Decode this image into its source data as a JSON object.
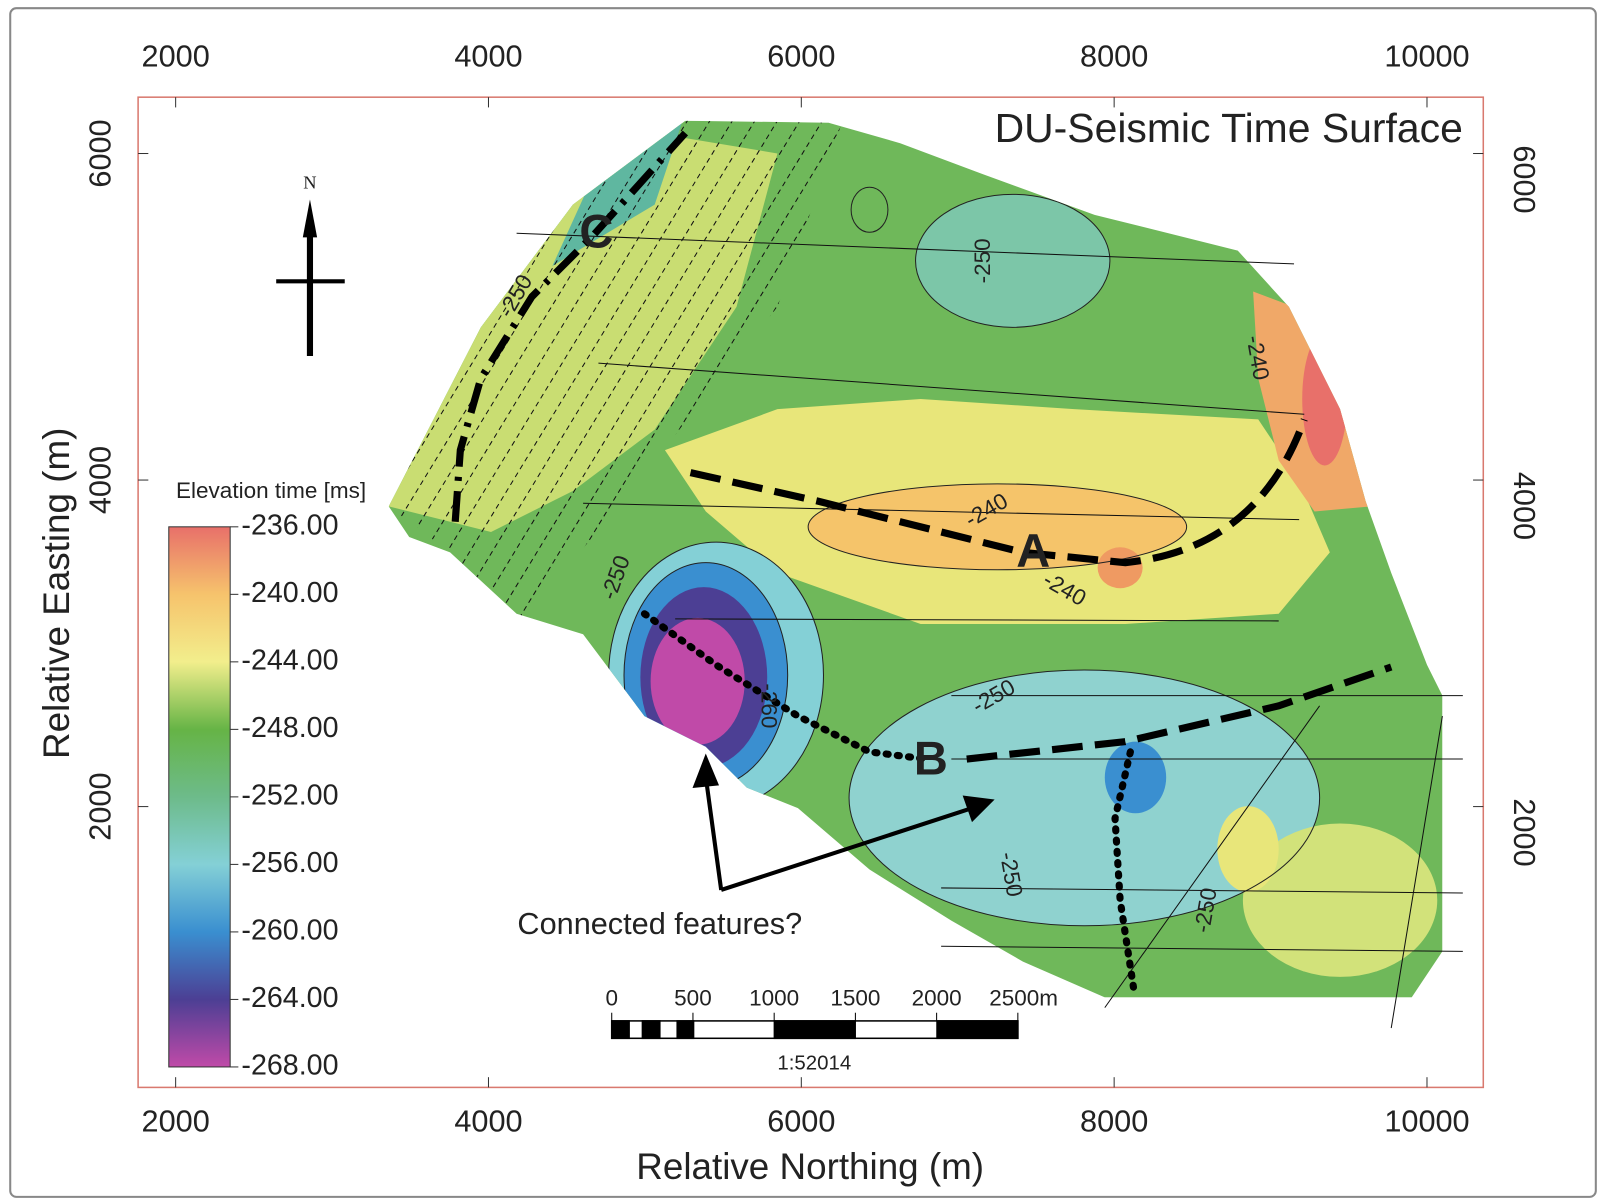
{
  "map": {
    "title": "DU-Seismic Time Surface",
    "x_axis": {
      "label": "Relative Northing (m)",
      "lim": [
        1760,
        10360
      ],
      "ticks": [
        2000,
        4000,
        6000,
        8000,
        10000
      ]
    },
    "y_axis": {
      "label": "Relative Easting (m)",
      "lim": [
        280,
        6345
      ],
      "ticks": [
        2000,
        4000,
        6000
      ]
    },
    "colorbar": {
      "label": "Elevation time [ms]",
      "lim": [
        -236,
        -268
      ],
      "ticks": [
        {
          "value": -236,
          "label": "-236.00"
        },
        {
          "value": -240,
          "label": "-240.00"
        },
        {
          "value": -244,
          "label": "-244.00"
        },
        {
          "value": -248,
          "label": "-248.00"
        },
        {
          "value": -252,
          "label": "-252.00"
        },
        {
          "value": -256,
          "label": "-256.00"
        },
        {
          "value": -260,
          "label": "-260.00"
        },
        {
          "value": -264,
          "label": "-264.00"
        },
        {
          "value": -268,
          "label": "-268.00"
        }
      ],
      "colors": [
        "#e8706a",
        "#f6c36c",
        "#f2ee8c",
        "#66b446",
        "#6dbb8a",
        "#84d0d6",
        "#3a8fd0",
        "#4c3f94",
        "#c04aa8"
      ]
    },
    "contour_labels": [
      -250,
      -250,
      -240,
      -240,
      -240,
      -250,
      -260,
      -250,
      -250,
      -250
    ],
    "features": [
      "A",
      "B",
      "C"
    ],
    "annotation": "Connected features?",
    "north": "N",
    "scale_bar": {
      "ticks": [
        0,
        500,
        1000,
        1500,
        2000,
        {
          "value": 2500,
          "label": "2500m"
        }
      ],
      "ratio": "1:52014"
    }
  }
}
